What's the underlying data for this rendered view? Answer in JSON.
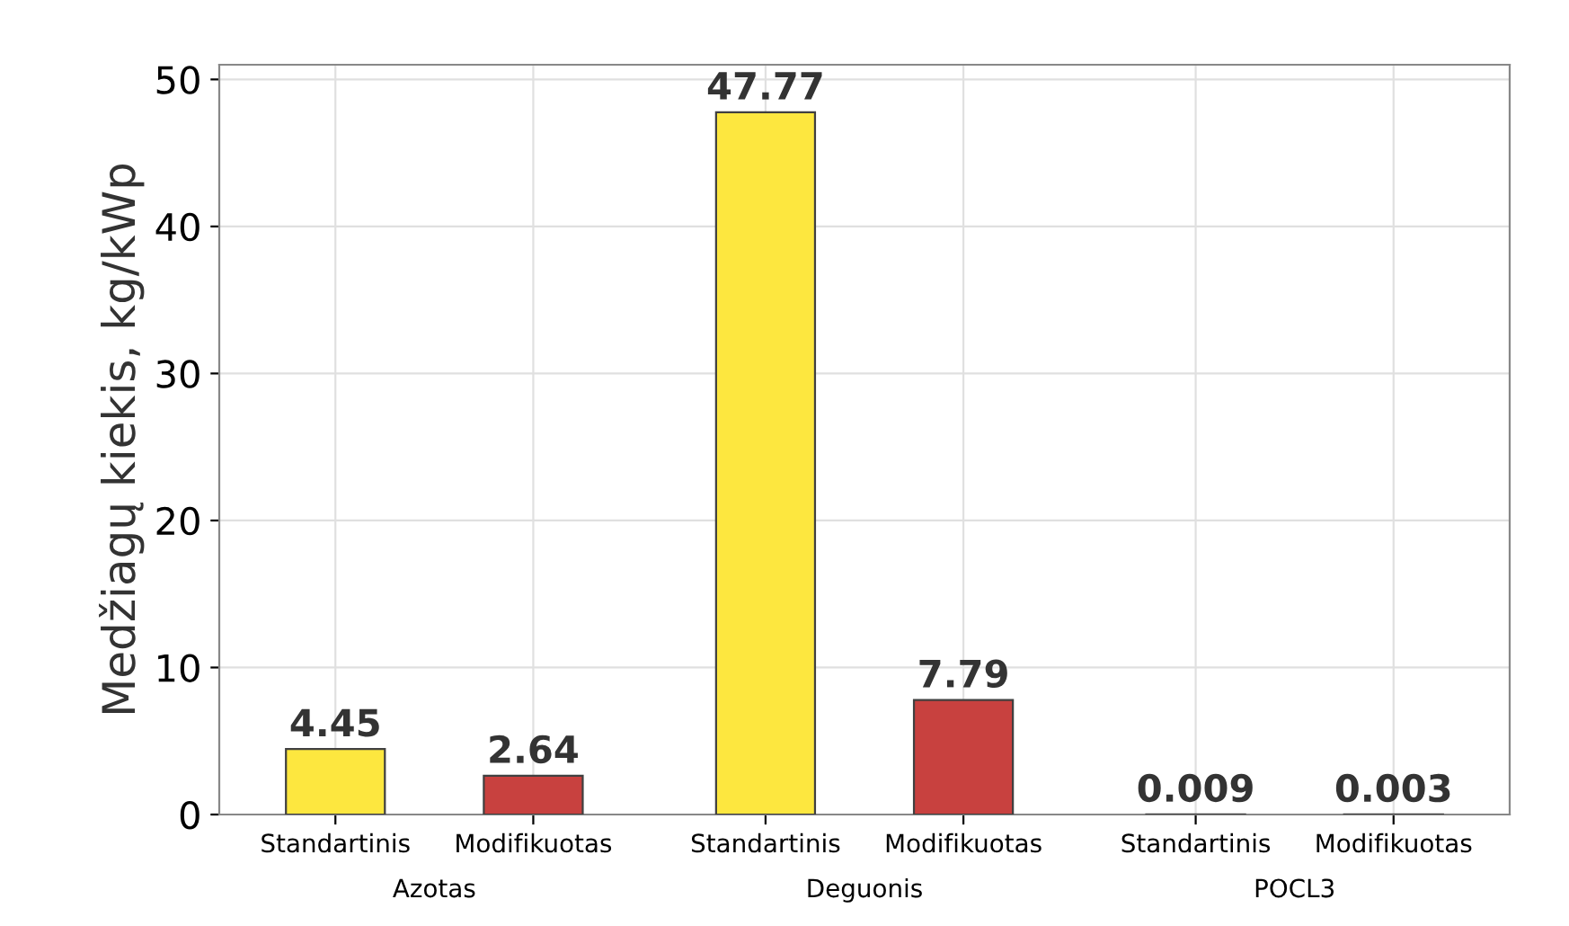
{
  "chart_data": {
    "type": "bar",
    "ylabel": "Medžiagų kiekis, kg/kWp",
    "categories": [
      "Azotas",
      "Deguonis",
      "POCL3"
    ],
    "series": [
      {
        "name": "Standartinis",
        "color": "#fde73f",
        "values": [
          4.45,
          47.77,
          0.009
        ]
      },
      {
        "name": "Modifikuotas",
        "color": "#c8413f",
        "values": [
          2.64,
          7.79,
          0.003
        ]
      }
    ],
    "ylim": [
      0,
      51
    ],
    "yticks": [
      0,
      10,
      20,
      30,
      40,
      50
    ],
    "grid": true,
    "data_labels": true,
    "legend": false
  }
}
